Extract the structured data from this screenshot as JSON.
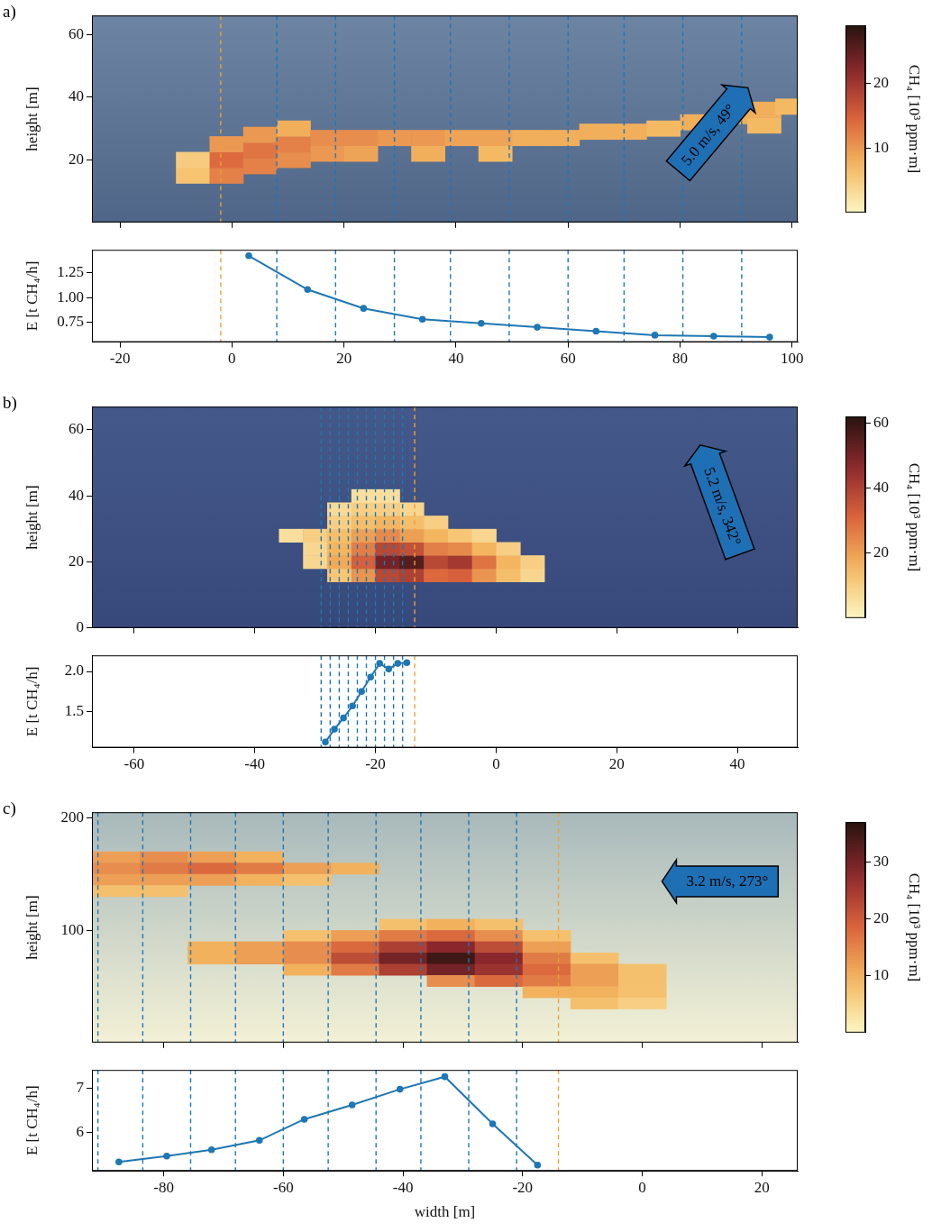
{
  "chart_data": [
    {
      "type": "heatmap",
      "title": "a)",
      "ylabel": "height [m]",
      "xlim": [
        -25,
        101
      ],
      "xticks": [
        -20,
        0,
        20,
        40,
        60,
        80,
        100
      ],
      "ylim": [
        0,
        66
      ],
      "yticks": [
        20,
        40,
        60
      ],
      "tick_labels": "y",
      "cell_width": 6,
      "cell_height": 5,
      "cells": [
        [
          -7,
          15,
          6
        ],
        [
          -7,
          20,
          5
        ],
        [
          -1,
          15,
          12
        ],
        [
          -1,
          20,
          14
        ],
        [
          -1,
          25,
          10
        ],
        [
          5,
          18,
          12
        ],
        [
          5,
          23,
          13
        ],
        [
          5,
          28,
          10
        ],
        [
          11,
          20,
          11
        ],
        [
          11,
          25,
          12
        ],
        [
          11,
          30,
          8
        ],
        [
          17,
          22,
          10
        ],
        [
          17,
          27,
          11
        ],
        [
          23,
          22,
          9
        ],
        [
          23,
          27,
          11
        ],
        [
          29,
          27,
          10
        ],
        [
          35,
          22,
          8
        ],
        [
          35,
          27,
          10
        ],
        [
          41,
          27,
          9
        ],
        [
          47,
          22,
          7
        ],
        [
          47,
          27,
          9
        ],
        [
          53,
          27,
          8
        ],
        [
          59,
          27,
          8
        ],
        [
          65,
          29,
          8
        ],
        [
          71,
          29,
          8
        ],
        [
          77,
          30,
          7
        ],
        [
          83,
          32,
          8
        ],
        [
          89,
          34,
          8
        ],
        [
          95,
          31,
          7
        ],
        [
          95,
          36,
          8
        ],
        [
          100,
          37,
          7
        ]
      ],
      "colorbar": {
        "label": "CH₄ [10³ ppm·m]",
        "range": [
          0,
          29
        ],
        "ticks": [
          10,
          20
        ]
      },
      "annotations": [
        {
          "text": "5.0 m/s, 49°"
        }
      ],
      "vlines": [
        {
          "color": "#e8a33a",
          "x": [
            -2
          ]
        },
        {
          "color": "#1f77b4",
          "x": [
            8,
            18.5,
            29,
            39,
            49.5,
            60,
            70,
            80.5,
            91,
            101
          ]
        }
      ],
      "line_style": "dashed"
    },
    {
      "type": "line",
      "ylabel": "E [t CH₄/h]",
      "xlim": [
        -25,
        101
      ],
      "xticks": [
        -20,
        0,
        20,
        40,
        60,
        80,
        100
      ],
      "ylim": [
        0.55,
        1.48
      ],
      "yticks": [
        {
          "value": 0.75,
          "label": "0.75"
        },
        {
          "value": 1,
          "label": "1.00"
        },
        {
          "value": 1.25,
          "label": "1.25"
        }
      ],
      "x": [
        3,
        13.5,
        23.5,
        34,
        44.5,
        54.5,
        65,
        75.5,
        86,
        96
      ],
      "values": [
        1.42,
        1.08,
        0.89,
        0.78,
        0.74,
        0.7,
        0.66,
        0.62,
        0.61,
        0.6
      ],
      "color": "#1f77b4",
      "marker": "circle",
      "vlines": [
        {
          "color": "#e8a33a",
          "x": [
            -2
          ]
        },
        {
          "color": "#1f77b4",
          "x": [
            8,
            18.5,
            29,
            39,
            49.5,
            60,
            70,
            80.5,
            91,
            101
          ]
        }
      ],
      "line_style": "dashed"
    },
    {
      "type": "heatmap",
      "title": "b)",
      "ylabel": "height [m]",
      "xlim": [
        -67,
        50
      ],
      "xticks": [
        -60,
        -40,
        -20,
        0,
        20,
        40
      ],
      "ylim": [
        0,
        67
      ],
      "yticks": [
        0,
        20,
        40,
        60
      ],
      "tick_labels": "y",
      "cell_width": 4,
      "cell_height": 4,
      "cells": [
        [
          -26,
          16,
          12
        ],
        [
          -22,
          16,
          22
        ],
        [
          -18,
          16,
          38
        ],
        [
          -14,
          16,
          40
        ],
        [
          -10,
          16,
          30
        ],
        [
          -6,
          16,
          32
        ],
        [
          -2,
          16,
          22
        ],
        [
          2,
          16,
          14
        ],
        [
          6,
          16,
          8
        ],
        [
          -30,
          20,
          8
        ],
        [
          -26,
          20,
          18
        ],
        [
          -22,
          20,
          32
        ],
        [
          -18,
          20,
          50
        ],
        [
          -14,
          20,
          55
        ],
        [
          -10,
          20,
          38
        ],
        [
          -6,
          20,
          42
        ],
        [
          -2,
          20,
          28
        ],
        [
          2,
          20,
          16
        ],
        [
          6,
          20,
          10
        ],
        [
          -30,
          24,
          8
        ],
        [
          -26,
          24,
          16
        ],
        [
          -22,
          24,
          26
        ],
        [
          -18,
          24,
          38
        ],
        [
          -14,
          24,
          36
        ],
        [
          -10,
          24,
          26
        ],
        [
          -6,
          24,
          24
        ],
        [
          -2,
          24,
          16
        ],
        [
          2,
          24,
          10
        ],
        [
          -34,
          28,
          6
        ],
        [
          -30,
          28,
          10
        ],
        [
          -26,
          28,
          14
        ],
        [
          -22,
          28,
          20
        ],
        [
          -18,
          28,
          24
        ],
        [
          -14,
          28,
          20
        ],
        [
          -10,
          28,
          16
        ],
        [
          -6,
          28,
          12
        ],
        [
          -2,
          28,
          8
        ],
        [
          -26,
          32,
          10
        ],
        [
          -22,
          32,
          14
        ],
        [
          -18,
          32,
          16
        ],
        [
          -14,
          32,
          14
        ],
        [
          -10,
          32,
          10
        ],
        [
          -26,
          36,
          7
        ],
        [
          -22,
          36,
          10
        ],
        [
          -18,
          36,
          10
        ],
        [
          -14,
          36,
          8
        ],
        [
          -22,
          40,
          6
        ],
        [
          -18,
          40,
          6
        ]
      ],
      "colorbar": {
        "label": "CH₄ [10³ ppm·m]",
        "range": [
          0,
          62
        ],
        "ticks": [
          20,
          40,
          60
        ]
      },
      "annotations": [
        {
          "text": "5.2 m/s, 342°"
        }
      ],
      "vlines": [
        {
          "color": "#e8a33a",
          "x": [
            -13.5
          ]
        },
        {
          "color": "#1f77b4",
          "x": [
            -29,
            -27.5,
            -26,
            -24.5,
            -23,
            -21.5,
            -20,
            -18.5,
            -17,
            -15.5
          ]
        }
      ],
      "line_style": "dashed"
    },
    {
      "type": "line",
      "ylabel": "E [t CH₄/h]",
      "xlim": [
        -67,
        50
      ],
      "xticks": [
        -60,
        -40,
        -20,
        0,
        20,
        40
      ],
      "ylim": [
        1.05,
        2.2
      ],
      "yticks": [
        {
          "value": 1.5,
          "label": "1.5"
        },
        {
          "value": 2,
          "label": "2.0"
        }
      ],
      "x": [
        -28.3,
        -26.8,
        -25.3,
        -23.8,
        -22.3,
        -20.8,
        -19.3,
        -17.8,
        -16.3,
        -14.8
      ],
      "values": [
        1.12,
        1.28,
        1.42,
        1.57,
        1.75,
        1.93,
        2.1,
        2.03,
        2.1,
        2.11
      ],
      "color": "#1f77b4",
      "marker": "circle",
      "vlines": [
        {
          "color": "#e8a33a",
          "x": [
            -13.5
          ]
        },
        {
          "color": "#1f77b4",
          "x": [
            -29,
            -27.5,
            -26,
            -24.5,
            -23,
            -21.5,
            -20,
            -18.5,
            -17,
            -15.5
          ]
        }
      ],
      "line_style": "dashed"
    },
    {
      "type": "heatmap",
      "title": "c)",
      "ylabel": "height [m]",
      "xlim": [
        -92,
        26
      ],
      "xticks": [
        -80,
        -60,
        -40,
        -20,
        0,
        20
      ],
      "ylim": [
        0,
        205
      ],
      "yticks": [
        100,
        200
      ],
      "tick_labels": "y",
      "cell_width": 8,
      "cell_height": 10,
      "cells": [
        [
          -88,
          165,
          12
        ],
        [
          -80,
          165,
          14
        ],
        [
          -72,
          165,
          12
        ],
        [
          -64,
          165,
          10
        ],
        [
          -88,
          155,
          14
        ],
        [
          -80,
          155,
          16
        ],
        [
          -72,
          155,
          18
        ],
        [
          -64,
          155,
          16
        ],
        [
          -56,
          155,
          12
        ],
        [
          -48,
          155,
          10
        ],
        [
          -88,
          145,
          12
        ],
        [
          -80,
          145,
          12
        ],
        [
          -72,
          145,
          12
        ],
        [
          -64,
          145,
          10
        ],
        [
          -56,
          145,
          8
        ],
        [
          -88,
          135,
          8
        ],
        [
          -80,
          135,
          8
        ],
        [
          -40,
          105,
          8
        ],
        [
          -32,
          105,
          10
        ],
        [
          -24,
          105,
          8
        ],
        [
          -56,
          95,
          8
        ],
        [
          -48,
          95,
          12
        ],
        [
          -40,
          95,
          16
        ],
        [
          -32,
          95,
          18
        ],
        [
          -24,
          95,
          14
        ],
        [
          -16,
          95,
          8
        ],
        [
          -72,
          85,
          10
        ],
        [
          -64,
          85,
          12
        ],
        [
          -56,
          85,
          14
        ],
        [
          -48,
          85,
          18
        ],
        [
          -40,
          85,
          24
        ],
        [
          -32,
          85,
          28
        ],
        [
          -24,
          85,
          22
        ],
        [
          -16,
          85,
          12
        ],
        [
          -72,
          75,
          10
        ],
        [
          -64,
          75,
          12
        ],
        [
          -56,
          75,
          14
        ],
        [
          -48,
          75,
          22
        ],
        [
          -40,
          75,
          30
        ],
        [
          -32,
          75,
          35
        ],
        [
          -24,
          75,
          28
        ],
        [
          -16,
          75,
          16
        ],
        [
          -8,
          75,
          8
        ],
        [
          -56,
          65,
          10
        ],
        [
          -48,
          65,
          16
        ],
        [
          -40,
          65,
          24
        ],
        [
          -32,
          65,
          30
        ],
        [
          -24,
          65,
          26
        ],
        [
          -16,
          65,
          18
        ],
        [
          -8,
          65,
          12
        ],
        [
          0,
          65,
          8
        ],
        [
          -32,
          55,
          14
        ],
        [
          -24,
          55,
          18
        ],
        [
          -16,
          55,
          16
        ],
        [
          -8,
          55,
          12
        ],
        [
          0,
          55,
          8
        ],
        [
          -16,
          45,
          10
        ],
        [
          -8,
          45,
          10
        ],
        [
          0,
          45,
          8
        ],
        [
          -8,
          35,
          8
        ],
        [
          0,
          35,
          6
        ]
      ],
      "colorbar": {
        "label": "CH₄ [10³ ppm·m]",
        "range": [
          0,
          37
        ],
        "ticks": [
          10,
          20,
          30
        ]
      },
      "annotations": [
        {
          "text": "3.2 m/s, 273°"
        }
      ],
      "vlines": [
        {
          "color": "#e8a33a",
          "x": [
            -14
          ]
        },
        {
          "color": "#1f77b4",
          "x": [
            -91,
            -83.5,
            -75.5,
            -68,
            -60,
            -52.5,
            -44.5,
            -37,
            -29,
            -21
          ]
        }
      ],
      "line_style": "dashed"
    },
    {
      "type": "line",
      "ylabel": "E [t CH₄/h]",
      "xlabel": "width [m]",
      "xlim": [
        -92,
        26
      ],
      "xticks": [
        -80,
        -60,
        -40,
        -20,
        0,
        20
      ],
      "ylim": [
        5.15,
        7.4
      ],
      "yticks": [
        6,
        7
      ],
      "x": [
        -87.5,
        -79.5,
        -72,
        -64,
        -56.5,
        -48.5,
        -40.5,
        -33,
        -25,
        -17.5
      ],
      "values": [
        5.35,
        5.48,
        5.62,
        5.83,
        6.3,
        6.62,
        6.97,
        7.25,
        6.2,
        5.28
      ],
      "color": "#1f77b4",
      "marker": "circle",
      "vlines": [
        {
          "color": "#e8a33a",
          "x": [
            -14
          ]
        },
        {
          "color": "#1f77b4",
          "x": [
            -91,
            -83.5,
            -75.5,
            -68,
            -60,
            -52.5,
            -44.5,
            -37,
            -29,
            -21
          ]
        }
      ],
      "line_style": "dashed"
    }
  ]
}
